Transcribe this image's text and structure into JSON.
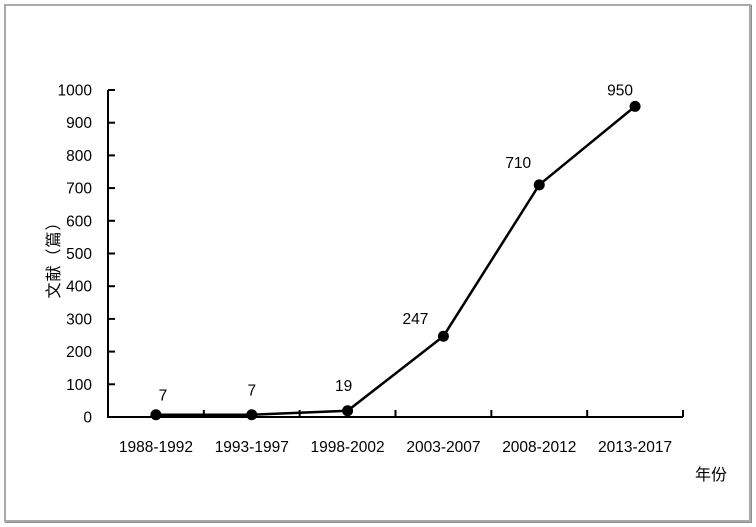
{
  "frame": {
    "border_color": "#a9a9a9",
    "background": "#ffffff"
  },
  "chart_data": {
    "type": "line",
    "title": "",
    "categories": [
      "1988-1992",
      "1993-1997",
      "1998-2002",
      "2003-2007",
      "2008-2012",
      "2013-2017"
    ],
    "values": [
      7,
      7,
      19,
      247,
      710,
      950
    ],
    "data_labels": [
      "7",
      "7",
      "19",
      "247",
      "710",
      "950"
    ],
    "xlabel": "年份",
    "ylabel": "文献（篇）",
    "ylim": [
      0,
      1000
    ],
    "yticks": [
      0,
      100,
      200,
      300,
      400,
      500,
      600,
      700,
      800,
      900,
      1000
    ],
    "grid": "off",
    "legend": "none",
    "line_color": "#000000",
    "marker": "circle",
    "marker_color": "#000000",
    "axis_color": "#000000"
  }
}
